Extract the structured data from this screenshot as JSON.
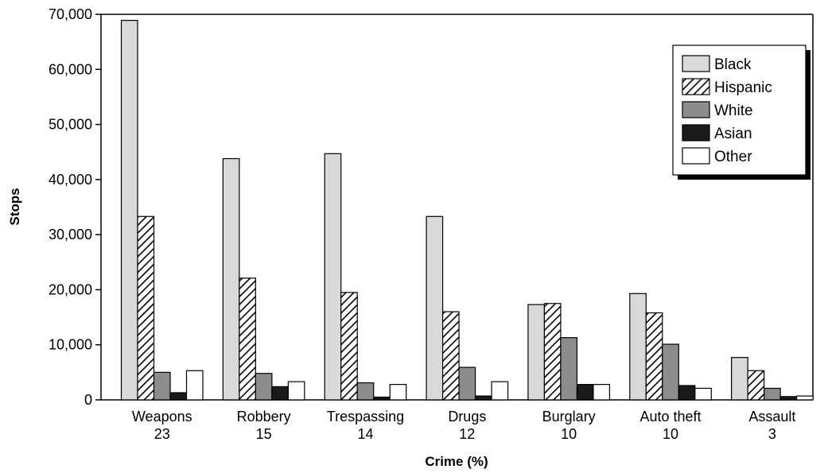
{
  "chart_data": {
    "type": "bar",
    "xlabel": "Crime (%)",
    "ylabel": "Stops",
    "ylim": [
      0,
      70000
    ],
    "yticks": [
      0,
      10000,
      20000,
      30000,
      40000,
      50000,
      60000,
      70000
    ],
    "ytick_labels": [
      "0",
      "10,000",
      "20,000",
      "30,000",
      "40,000",
      "50,000",
      "60,000",
      "70,000"
    ],
    "categories": [
      "Weapons",
      "Robbery",
      "Trespassing",
      "Drugs",
      "Burglary",
      "Auto theft",
      "Assault"
    ],
    "category_percents": [
      "23",
      "15",
      "14",
      "12",
      "10",
      "10",
      "3"
    ],
    "legend_position": "top-right",
    "grid": false,
    "series": [
      {
        "name": "Black",
        "fill": "#d9d9d9",
        "pattern": "solid",
        "values": [
          68900,
          43800,
          44700,
          33300,
          17300,
          19300,
          7700
        ]
      },
      {
        "name": "Hispanic",
        "fill": "#ffffff",
        "pattern": "hatch",
        "values": [
          33300,
          22100,
          19500,
          16000,
          17500,
          15800,
          5300
        ]
      },
      {
        "name": "White",
        "fill": "#8c8c8c",
        "pattern": "solid",
        "values": [
          5000,
          4800,
          3100,
          5900,
          11300,
          10100,
          2100
        ]
      },
      {
        "name": "Asian",
        "fill": "#1a1a1a",
        "pattern": "solid",
        "values": [
          1300,
          2400,
          500,
          700,
          2800,
          2600,
          600
        ]
      },
      {
        "name": "Other",
        "fill": "#ffffff",
        "pattern": "solid",
        "values": [
          5300,
          3300,
          2800,
          3300,
          2800,
          2100,
          700
        ]
      }
    ]
  }
}
